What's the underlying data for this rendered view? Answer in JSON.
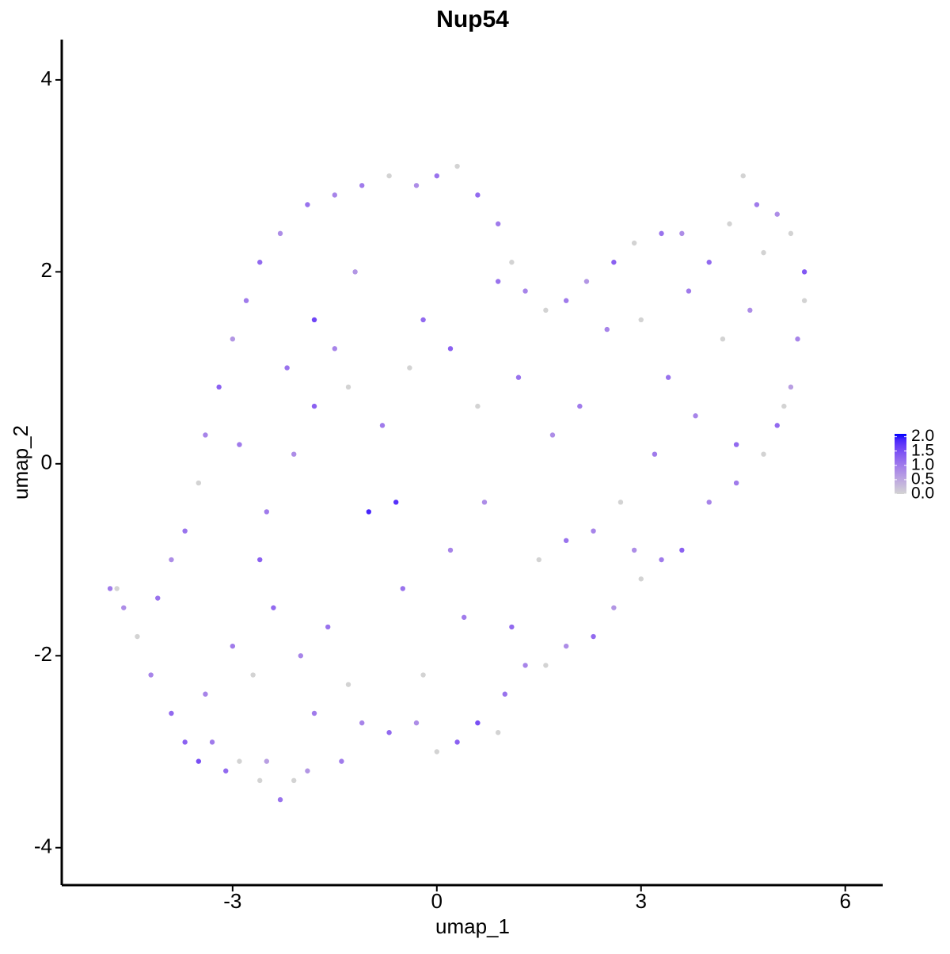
{
  "chart_data": {
    "type": "scatter",
    "title": "Nup54",
    "xlabel": "umap_1",
    "ylabel": "umap_2",
    "xlim": [
      -5.51,
      6.55
    ],
    "ylim": [
      -4.39,
      4.42
    ],
    "xticks": [
      -3,
      0,
      3,
      6
    ],
    "yticks": [
      -4,
      -2,
      0,
      2,
      4
    ],
    "color_low": "#d3d3d3",
    "color_high": "#0000ff",
    "clim": [
      0,
      2.1
    ],
    "cticks": [
      {
        "value": 0,
        "label": "0.0"
      },
      {
        "value": 0.5,
        "label": "0.5"
      },
      {
        "value": 1,
        "label": "1.0"
      },
      {
        "value": 1.5,
        "label": "1.5"
      },
      {
        "value": 2,
        "label": "2.0"
      }
    ],
    "x": [
      -4.8,
      -4.7,
      -4.6,
      -4.4,
      -4.2,
      -4.1,
      -3.9,
      -3.7,
      -3.5,
      -3.3,
      -3.1,
      -2.9,
      -2.6,
      -2.5,
      -2.3,
      -2.1,
      -1.9,
      -1.4,
      -1.1,
      -0.7,
      -0.3,
      0,
      0.3,
      0.6,
      0.9,
      1.0,
      1.3,
      1.6,
      1.9,
      2.3,
      2.6,
      3.0,
      3.3,
      3.6,
      4.0,
      4.4,
      4.8,
      5.0,
      5.1,
      5.2,
      5.3,
      5.4,
      5.4,
      5.2,
      5.0,
      4.7,
      4.5,
      4.3,
      4.0,
      3.6,
      3.3,
      2.9,
      2.6,
      2.2,
      1.9,
      1.6,
      1.3,
      1.1,
      0.9,
      0.6,
      0.3,
      0,
      -0.3,
      -0.7,
      -1.1,
      -1.5,
      -1.9,
      -2.3,
      -2.6,
      -2.8,
      -3.0,
      -3.2,
      -3.4,
      -3.5,
      -3.7,
      -3.9,
      -3.0,
      -2.7,
      -2.4,
      -2.0,
      -1.6,
      -1.3,
      -2.5,
      -2.1,
      -1.8,
      -1.5,
      -1.8,
      -1.0,
      -0.6,
      -0.8,
      -0.4,
      -0.2,
      -1.2,
      -2.2,
      -2.9,
      -0.5,
      0.2,
      0.4,
      0.7,
      1.1,
      1.5,
      1.9,
      2.3,
      2.7,
      2.1,
      1.7,
      1.2,
      0.6,
      0.2,
      2.5,
      3.0,
      3.4,
      3.8,
      4.2,
      4.4,
      3.7,
      4.6,
      4.8,
      3.2,
      2.9,
      -0.2,
      -1.8,
      -3.4,
      -2.6,
      -1.3,
      0.9
    ],
    "y": [
      -1.3,
      -1.3,
      -1.5,
      -1.8,
      -2.2,
      -1.4,
      -2.6,
      -2.9,
      -3.1,
      -2.9,
      -3.2,
      -3.1,
      -3.3,
      -3.1,
      -3.5,
      -3.3,
      -3.2,
      -3.1,
      -2.7,
      -2.8,
      -2.7,
      -3.0,
      -2.9,
      -2.7,
      -2.8,
      -2.4,
      -2.1,
      -2.1,
      -1.9,
      -1.8,
      -1.5,
      -1.2,
      -1.0,
      -0.9,
      -0.4,
      -0.2,
      0.1,
      0.4,
      0.6,
      0.8,
      1.3,
      1.7,
      2.0,
      2.4,
      2.6,
      2.7,
      3.0,
      2.5,
      2.1,
      2.4,
      2.4,
      2.3,
      2.1,
      1.9,
      1.7,
      1.6,
      1.8,
      2.1,
      2.5,
      2.8,
      3.1,
      3.0,
      2.9,
      3.0,
      2.9,
      2.8,
      2.7,
      2.4,
      2.1,
      1.7,
      1.3,
      0.8,
      0.3,
      -0.2,
      -0.7,
      -1.0,
      -1.9,
      -2.2,
      -1.5,
      -2.0,
      -1.7,
      -2.3,
      -0.5,
      0.1,
      0.6,
      1.2,
      1.5,
      -0.5,
      -0.4,
      0.4,
      1.0,
      1.5,
      2.0,
      1.0,
      0.2,
      -1.3,
      -0.9,
      -1.6,
      -0.4,
      -1.7,
      -1.0,
      -0.8,
      -0.7,
      -0.4,
      0.6,
      0.3,
      0.9,
      0.6,
      1.2,
      1.4,
      1.5,
      0.9,
      0.5,
      1.3,
      0.2,
      1.8,
      1.6,
      2.2,
      0.1,
      -0.9,
      -2.2,
      -2.6,
      -2.4,
      -1.0,
      0.8,
      1.9
    ],
    "values": [
      1.0,
      0,
      0.8,
      0,
      0.9,
      1.1,
      1.2,
      1.3,
      1.5,
      1.0,
      1.2,
      0,
      0,
      0.6,
      1.1,
      0,
      0.7,
      1.0,
      0.9,
      1.2,
      0.8,
      0,
      1.3,
      1.5,
      0,
      1.1,
      0.9,
      0,
      0.8,
      1.2,
      0.7,
      0,
      1.0,
      1.3,
      0.9,
      1.0,
      0,
      1.2,
      0,
      0.6,
      0.9,
      0,
      1.4,
      0,
      0.8,
      1.0,
      0,
      0,
      1.2,
      0.8,
      1.1,
      0,
      1.3,
      0.7,
      1.0,
      0,
      0.9,
      0,
      1.0,
      1.2,
      0,
      1.1,
      0.8,
      0,
      1.0,
      0.9,
      1.1,
      0.8,
      1.2,
      1.0,
      0.7,
      1.3,
      0.9,
      0,
      1.1,
      0.8,
      1.0,
      0,
      1.2,
      0.9,
      1.1,
      0,
      1.0,
      0.8,
      1.3,
      0.9,
      1.6,
      1.9,
      1.8,
      1.0,
      0,
      1.2,
      0.7,
      1.1,
      1.0,
      1.1,
      0.9,
      1.0,
      0.8,
      1.2,
      0,
      1.1,
      0.9,
      0,
      1.0,
      0.8,
      1.1,
      0,
      1.3,
      0.9,
      0,
      1.1,
      0.9,
      0,
      1.2,
      1.0,
      0.8,
      0,
      1.0,
      0.8,
      0,
      1.0,
      0.9,
      1.3,
      0,
      1.1
    ]
  }
}
